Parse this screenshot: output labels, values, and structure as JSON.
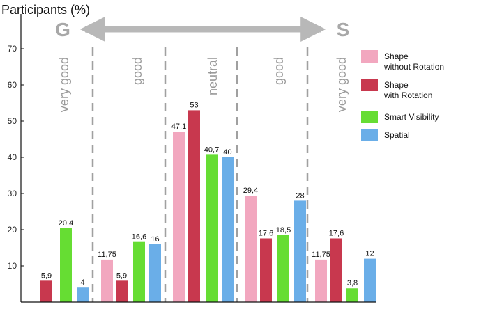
{
  "chart_data": {
    "type": "bar",
    "ylabel": "Participants (%)",
    "ylim": [
      0,
      75
    ],
    "yticks": [
      10,
      20,
      30,
      40,
      50,
      60,
      70
    ],
    "grid": false,
    "legend_position": "right",
    "scale_endpoints": {
      "left": "G",
      "right": "S"
    },
    "categories": [
      "very good",
      "good",
      "neutral",
      "good",
      "very good"
    ],
    "series": [
      {
        "name": "Shape without Rotation",
        "name_lines": [
          "Shape",
          "without Rotation"
        ],
        "color": "#f2a7bf",
        "values": [
          null,
          11.75,
          47.1,
          29.4,
          11.75
        ],
        "labels": [
          "",
          "11,75",
          "47,1",
          "29,4",
          "11,75"
        ]
      },
      {
        "name": "Shape with Rotation",
        "name_lines": [
          "Shape",
          "with Rotation"
        ],
        "color": "#c8384e",
        "values": [
          5.9,
          5.9,
          53,
          17.6,
          17.6
        ],
        "labels": [
          "5,9",
          "5,9",
          "53",
          "17,6",
          "17,6"
        ]
      },
      {
        "name": "Smart Visibility",
        "name_lines": [
          "Smart Visibility"
        ],
        "color": "#66dd33",
        "values": [
          20.4,
          16.6,
          40.7,
          18.5,
          3.8
        ],
        "labels": [
          "20,4",
          "16,6",
          "40,7",
          "18,5",
          "3,8"
        ]
      },
      {
        "name": "Spatial",
        "name_lines": [
          "Spatial"
        ],
        "color": "#6aaee8",
        "values": [
          4,
          16,
          40,
          28,
          12
        ],
        "labels": [
          "4",
          "16",
          "40",
          "28",
          "12"
        ]
      }
    ]
  }
}
